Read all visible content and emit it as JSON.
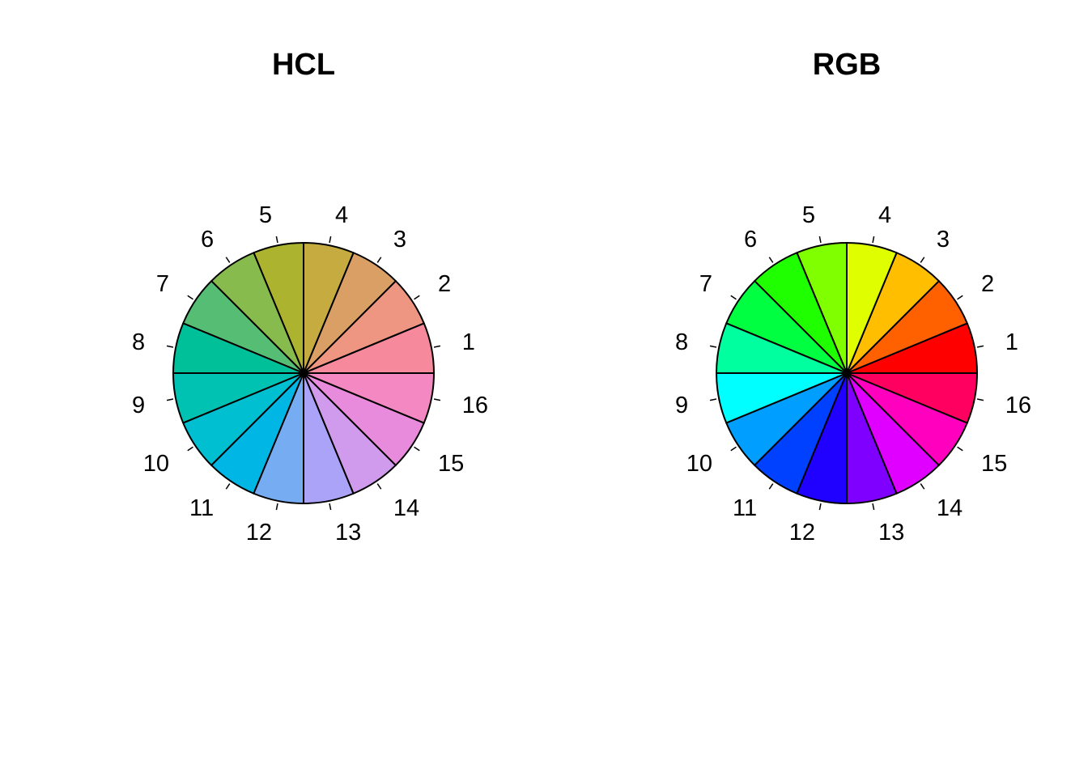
{
  "chart_data": [
    {
      "type": "pie",
      "title": "HCL",
      "labels": [
        "1",
        "2",
        "3",
        "4",
        "5",
        "6",
        "7",
        "8",
        "9",
        "10",
        "11",
        "12",
        "13",
        "14",
        "15",
        "16"
      ],
      "values": [
        1,
        1,
        1,
        1,
        1,
        1,
        1,
        1,
        1,
        1,
        1,
        1,
        1,
        1,
        1,
        1
      ],
      "colors": [
        "#F6899C",
        "#EE9681",
        "#DA9F64",
        "#C6AC40",
        "#ABB32F",
        "#87BB4D",
        "#55BE74",
        "#00C09A",
        "#00C2B3",
        "#00BFD1",
        "#00B6E4",
        "#76ADF2",
        "#AAA3F8",
        "#D09AED",
        "#E98BDC",
        "#F388C2"
      ]
    },
    {
      "type": "pie",
      "title": "RGB",
      "labels": [
        "1",
        "2",
        "3",
        "4",
        "5",
        "6",
        "7",
        "8",
        "9",
        "10",
        "11",
        "12",
        "13",
        "14",
        "15",
        "16"
      ],
      "values": [
        1,
        1,
        1,
        1,
        1,
        1,
        1,
        1,
        1,
        1,
        1,
        1,
        1,
        1,
        1,
        1
      ],
      "colors": [
        "#FF0000",
        "#FF6000",
        "#FFBF00",
        "#DFFF00",
        "#80FF00",
        "#20FF00",
        "#00FF40",
        "#00FF9F",
        "#00FFFF",
        "#009FFF",
        "#0040FF",
        "#2000FF",
        "#8000FF",
        "#DF00FF",
        "#FF00BF",
        "#FF0060"
      ]
    }
  ]
}
